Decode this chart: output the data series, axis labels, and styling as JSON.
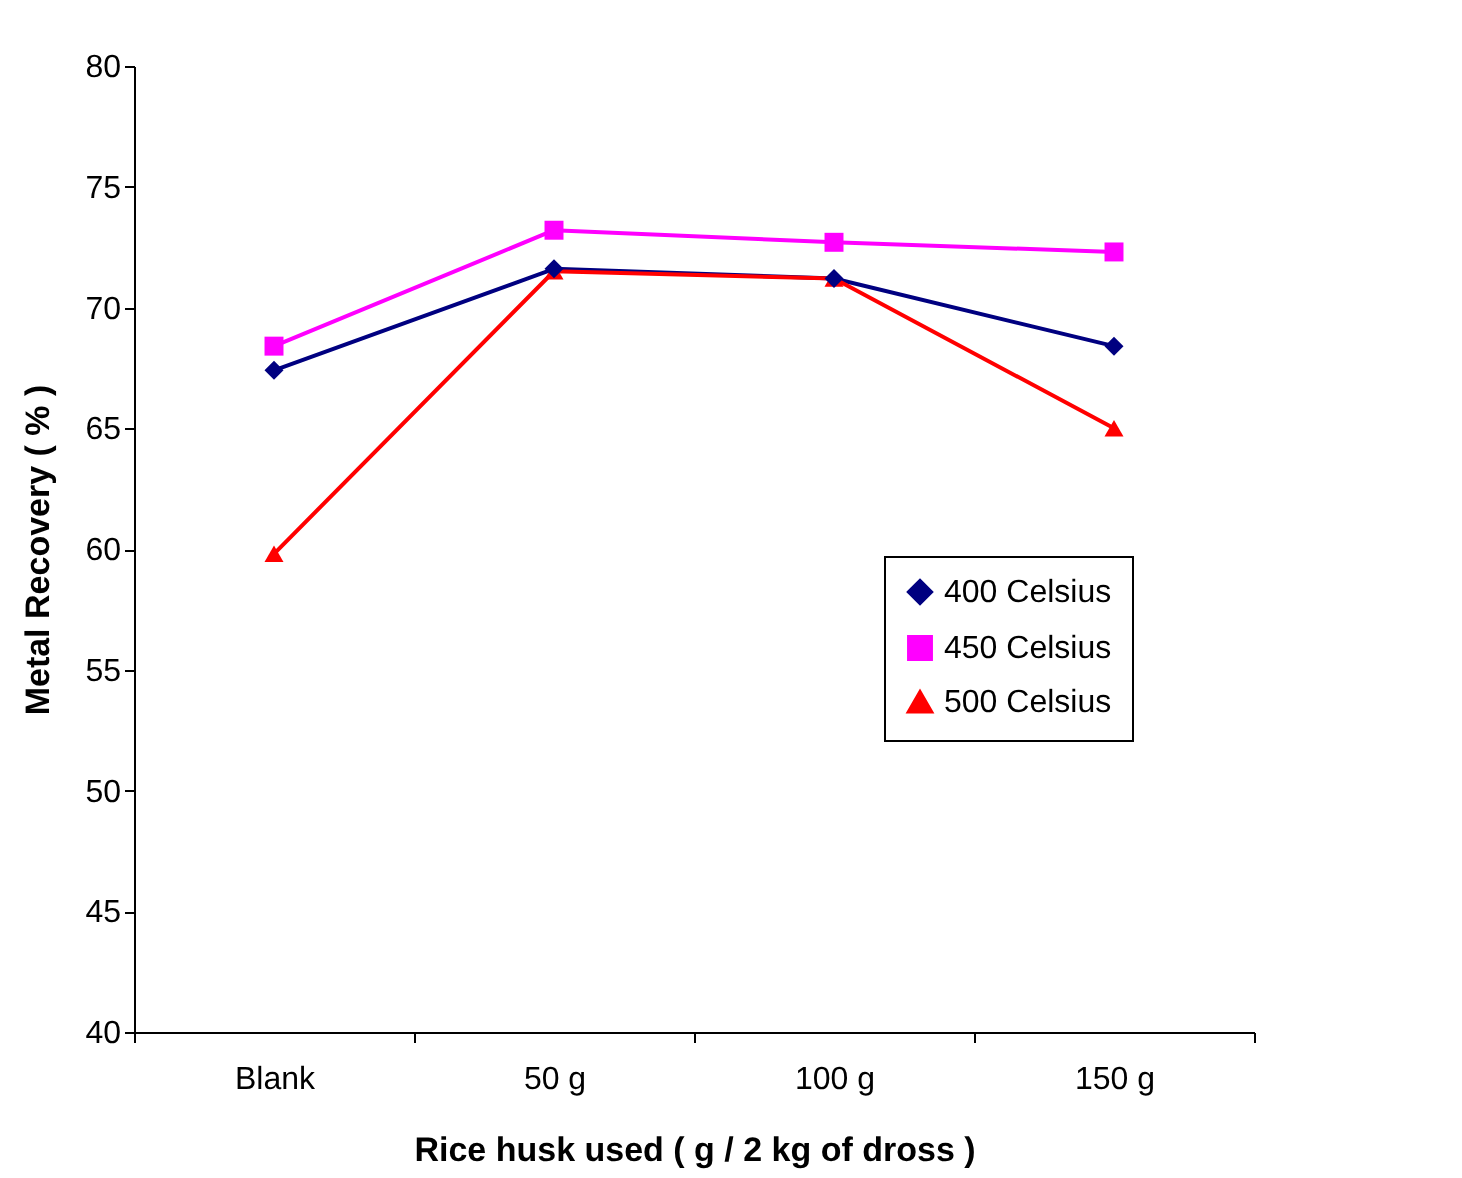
{
  "chart_data": {
    "type": "line",
    "xlabel": "Rice husk used ( g / 2 kg of dross )",
    "ylabel": "Metal Recovery ( % )",
    "categories": [
      "Blank",
      "50 g",
      "100 g",
      "150 g"
    ],
    "series": [
      {
        "name": "400 Celsius",
        "color": "#000080",
        "marker": "diamond",
        "values": [
          67.4,
          71.6,
          71.2,
          68.4
        ]
      },
      {
        "name": "450 Celsius",
        "color": "#ff00ff",
        "marker": "square",
        "values": [
          68.4,
          73.2,
          72.7,
          72.3
        ]
      },
      {
        "name": "500 Celsius",
        "color": "#ff0000",
        "marker": "triangle",
        "values": [
          59.8,
          71.5,
          71.2,
          65.0
        ]
      }
    ],
    "ylim": [
      40,
      80
    ],
    "yticks": [
      40,
      45,
      50,
      55,
      60,
      65,
      70,
      75,
      80
    ],
    "grid": false,
    "legend": "right"
  }
}
